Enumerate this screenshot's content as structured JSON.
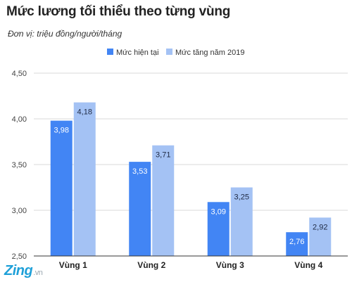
{
  "chart_data": {
    "type": "bar",
    "title": "Mức lương tối thiểu theo từng vùng",
    "subtitle": "Đơn vị: triệu đồng/người/tháng",
    "categories": [
      "Vùng 1",
      "Vùng 2",
      "Vùng 3",
      "Vùng 4"
    ],
    "series": [
      {
        "name": "Mức hiện tại",
        "values": [
          3.98,
          3.53,
          3.09,
          2.76
        ],
        "value_labels": [
          "3,98",
          "3,53",
          "3,09",
          "2,76"
        ],
        "color": "#4285f4"
      },
      {
        "name": "Mức tăng năm 2019",
        "values": [
          4.18,
          3.71,
          3.25,
          2.92
        ],
        "value_labels": [
          "4,18",
          "3,71",
          "3,25",
          "2,92"
        ],
        "color": "#a4c2f4"
      }
    ],
    "ylim": [
      2.5,
      4.5
    ],
    "yticks": [
      2.5,
      3.0,
      3.5,
      4.0,
      4.5
    ],
    "ytick_labels": [
      "2,50",
      "3,00",
      "3,50",
      "4,00",
      "4,50"
    ],
    "grid": true,
    "legend_position": "top-center",
    "xlabel": "",
    "ylabel": ""
  },
  "watermark": {
    "brand": "Zing",
    "tld": ".vn"
  }
}
